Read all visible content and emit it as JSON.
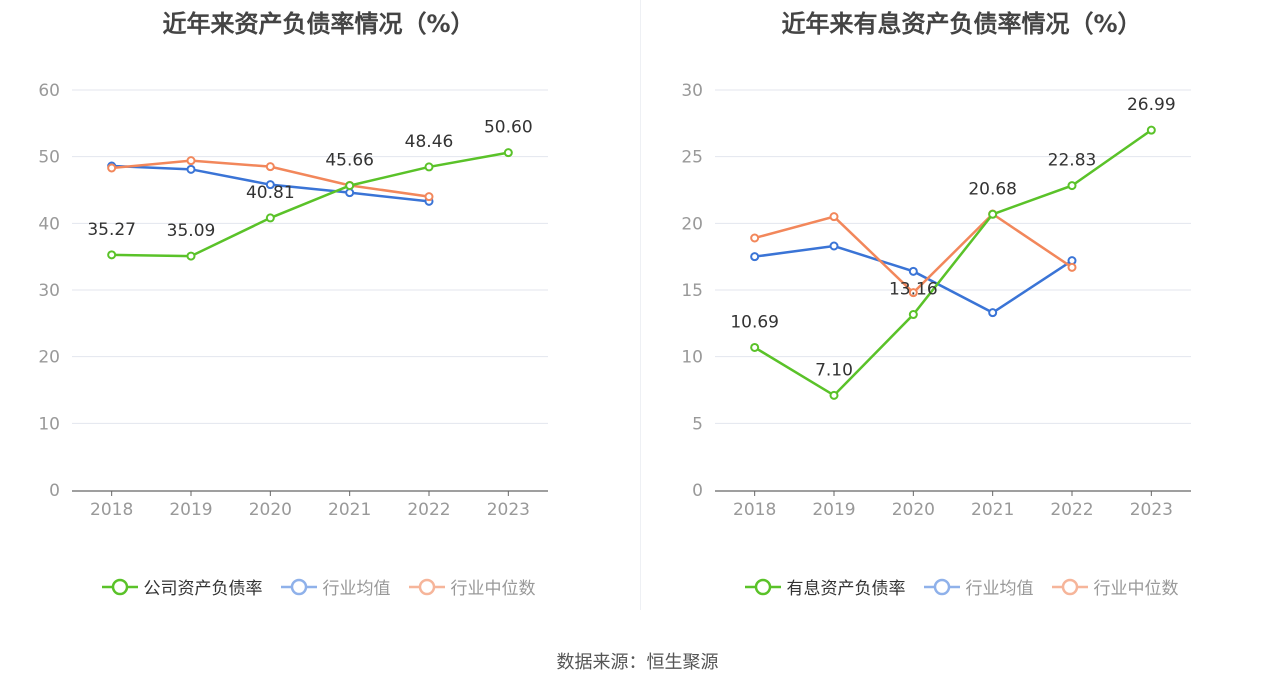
{
  "source_text": "数据来源：恒生聚源",
  "chart_data": [
    {
      "type": "line",
      "title": "近年来资产负债率情况（%）",
      "x": [
        "2018",
        "2019",
        "2020",
        "2021",
        "2022",
        "2023"
      ],
      "ylim": [
        0,
        60
      ],
      "yticks": [
        0,
        10,
        20,
        30,
        40,
        50,
        60
      ],
      "grid": true,
      "legend_position": "bottom",
      "series": [
        {
          "name": "公司资产负债率",
          "color": "#5ac229",
          "values": [
            35.27,
            35.09,
            40.81,
            45.66,
            48.46,
            50.6
          ],
          "labels": [
            "35.27",
            "35.09",
            "40.81",
            "45.66",
            "48.46",
            "50.60"
          ]
        },
        {
          "name": "行业均值",
          "color": "#3a74d6",
          "values": [
            48.6,
            48.1,
            45.8,
            44.6,
            43.3,
            null
          ]
        },
        {
          "name": "行业中位数",
          "color": "#f2875b",
          "values": [
            48.3,
            49.4,
            48.5,
            45.7,
            44.0,
            null
          ]
        }
      ]
    },
    {
      "type": "line",
      "title": "近年来有息资产负债率情况（%）",
      "x": [
        "2018",
        "2019",
        "2020",
        "2021",
        "2022",
        "2023"
      ],
      "ylim": [
        0,
        30
      ],
      "yticks": [
        0,
        5,
        10,
        15,
        20,
        25,
        30
      ],
      "grid": true,
      "legend_position": "bottom",
      "series": [
        {
          "name": "有息资产负债率",
          "color": "#5ac229",
          "values": [
            10.69,
            7.1,
            13.16,
            20.68,
            22.83,
            26.99
          ],
          "labels": [
            "10.69",
            "7.10",
            "13.16",
            "20.68",
            "22.83",
            "26.99"
          ]
        },
        {
          "name": "行业均值",
          "color": "#3a74d6",
          "values": [
            17.5,
            18.3,
            16.4,
            13.3,
            17.2,
            null
          ]
        },
        {
          "name": "行业中位数",
          "color": "#f2875b",
          "values": [
            18.9,
            20.5,
            14.8,
            20.7,
            16.7,
            null
          ]
        }
      ]
    }
  ]
}
